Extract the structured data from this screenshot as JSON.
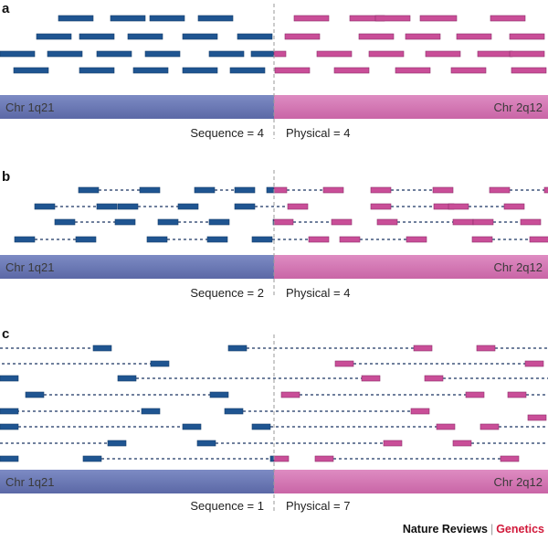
{
  "colors": {
    "blue_read": "#1f5591",
    "blue_read_edge": "#173e6b",
    "pink_read": "#c94e98",
    "pink_read_edge": "#8e2e6b",
    "blue_chr": "#6a78b4",
    "pink_chr": "#d478b5",
    "dash_line": "#41577d",
    "breakpoint_line": "#9a9a9a",
    "credit_accent": "#d1193a"
  },
  "panels": [
    {
      "letter": "a",
      "chr_left": "Chr 1q21",
      "chr_right": "Chr 2q12",
      "sequence_label": "Sequence = 4",
      "physical_label": "Physical = 4",
      "read_pair_type": "short-insert",
      "spanning_read_count": 4,
      "spanning_pair_count": 4
    },
    {
      "letter": "b",
      "chr_left": "Chr 1q21",
      "chr_right": "Chr 2q12",
      "sequence_label": "Sequence = 2",
      "physical_label": "Physical = 4",
      "read_pair_type": "medium-insert",
      "spanning_read_count": 2,
      "spanning_pair_count": 4
    },
    {
      "letter": "c",
      "chr_left": "Chr 1q21",
      "chr_right": "Chr 2q12",
      "sequence_label": "Sequence = 1",
      "physical_label": "Physical = 7",
      "read_pair_type": "long-insert",
      "spanning_read_count": 1,
      "spanning_pair_count": 7
    }
  ],
  "credit": {
    "publisher": "Nature Reviews",
    "separator": "|",
    "journal": "Genetics"
  }
}
